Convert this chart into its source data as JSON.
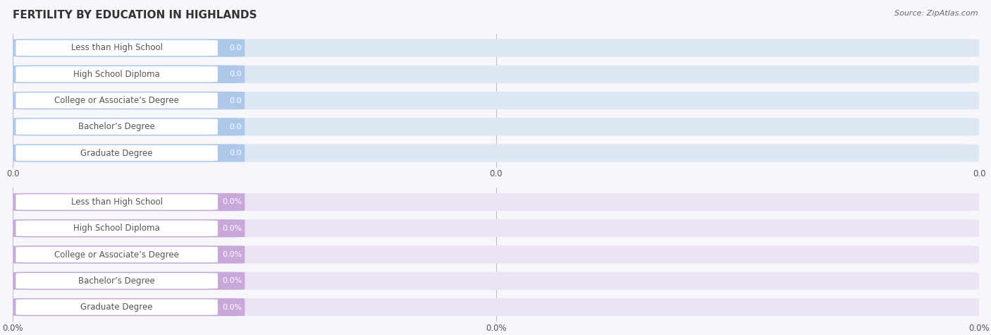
{
  "title": "FERTILITY BY EDUCATION IN HIGHLANDS",
  "source": "Source: ZipAtlas.com",
  "categories": [
    "Less than High School",
    "High School Diploma",
    "College or Associate’s Degree",
    "Bachelor’s Degree",
    "Graduate Degree"
  ],
  "top_values": [
    0.0,
    0.0,
    0.0,
    0.0,
    0.0
  ],
  "bottom_values": [
    0.0,
    0.0,
    0.0,
    0.0,
    0.0
  ],
  "top_bar_color": "#adc8e8",
  "top_bar_bg": "#dde8f4",
  "top_label_text": "#555555",
  "top_value_color": "white",
  "bottom_bar_color": "#c8a8d8",
  "bottom_bar_bg": "#ece4f4",
  "bottom_label_text": "#555555",
  "bottom_value_color": "white",
  "top_xtick_labels": [
    "0.0",
    "0.0",
    "0.0"
  ],
  "bottom_xtick_labels": [
    "0.0%",
    "0.0%",
    "0.0%"
  ],
  "background_color": "#f7f7fb",
  "title_fontsize": 11,
  "label_fontsize": 8.5,
  "value_fontsize": 8.0,
  "tick_fontsize": 8.5
}
